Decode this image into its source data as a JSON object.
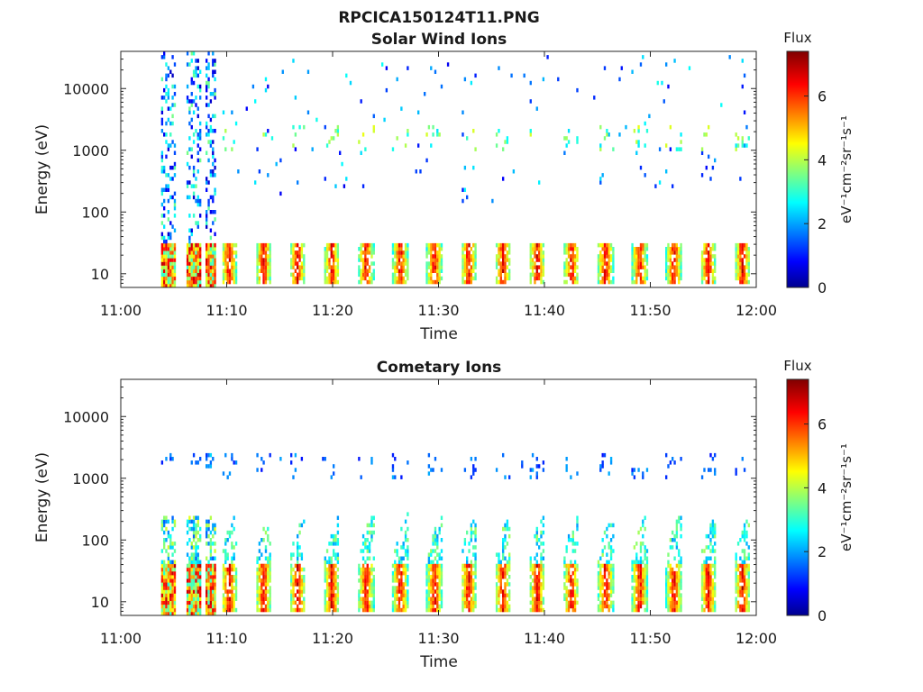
{
  "figure_title": "RPCICA150124T11.PNG",
  "chart_data": [
    {
      "type": "heatmap",
      "title": "Solar Wind Ions",
      "xlabel": "Time",
      "ylabel": "Energy (eV)",
      "x_ticks": [
        "11:00",
        "11:10",
        "11:20",
        "11:30",
        "11:40",
        "11:50",
        "12:00"
      ],
      "x_range_minutes": [
        0,
        60
      ],
      "y_scale": "log",
      "y_range": [
        6,
        40000
      ],
      "y_ticks": [
        10,
        100,
        1000,
        10000
      ],
      "y_tick_labels": [
        "10",
        "100",
        "1000",
        "10000"
      ],
      "colorbar": {
        "title": "Flux",
        "label": "eV⁻¹cm⁻²sr⁻¹s⁻¹",
        "range": [
          0,
          7.4
        ],
        "ticks": [
          0,
          2,
          4,
          6
        ],
        "colormap": "jet"
      },
      "features": {
        "low_energy_band": {
          "energy_range": [
            7,
            30
          ],
          "peak_flux": 6.5
        },
        "scattered_high_energy": {
          "energy_range": [
            150,
            40000
          ],
          "typical_flux": 1.5
        },
        "mid_band_dots": {
          "energy_range": [
            1000,
            2500
          ],
          "typical_flux": 3.5
        }
      }
    },
    {
      "type": "heatmap",
      "title": "Cometary Ions",
      "xlabel": "Time",
      "ylabel": "Energy (eV)",
      "x_ticks": [
        "11:00",
        "11:10",
        "11:20",
        "11:30",
        "11:40",
        "11:50",
        "12:00"
      ],
      "x_range_minutes": [
        0,
        60
      ],
      "y_scale": "log",
      "y_range": [
        6,
        40000
      ],
      "y_ticks": [
        10,
        100,
        1000,
        10000
      ],
      "y_tick_labels": [
        "10",
        "100",
        "1000",
        "10000"
      ],
      "colorbar": {
        "title": "Flux",
        "label": "eV⁻¹cm⁻²sr⁻¹s⁻¹",
        "range": [
          0,
          7.4
        ],
        "ticks": [
          0,
          2,
          4,
          6
        ],
        "colormap": "jet"
      },
      "features": {
        "low_energy_band": {
          "energy_range": [
            7,
            40
          ],
          "peak_flux": 7.0
        },
        "rising_tail": {
          "energy_range": [
            40,
            300
          ],
          "typical_flux": 3.5
        },
        "mid_band_dots": {
          "energy_range": [
            1500,
            2500
          ],
          "typical_flux": 1.8
        }
      }
    }
  ]
}
